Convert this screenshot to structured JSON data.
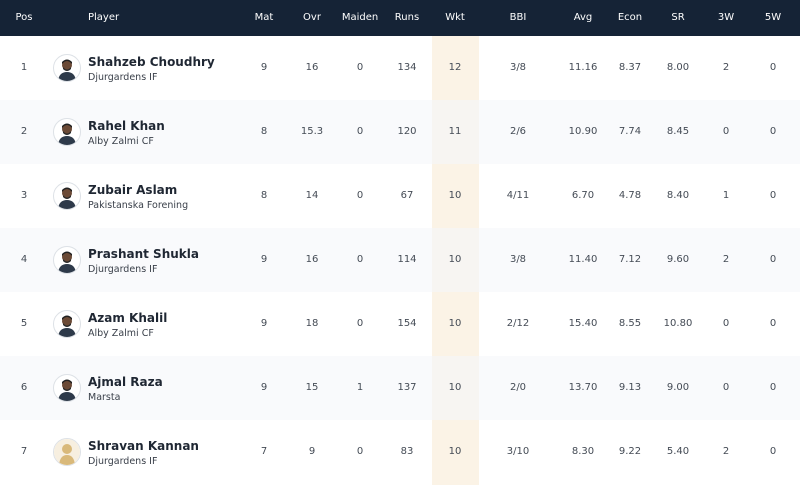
{
  "columns": {
    "pos": "Pos",
    "player": "Player",
    "mat": "Mat",
    "ovr": "Ovr",
    "maiden": "Maiden",
    "runs": "Runs",
    "wkt": "Wkt",
    "bbi": "BBI",
    "avg": "Avg",
    "econ": "Econ",
    "sr": "SR",
    "w3": "3W",
    "w5": "5W"
  },
  "highlight_color": "#fbf3e6",
  "header_color": "#152336",
  "rows": [
    {
      "pos": "1",
      "name": "Shahzeb Choudhry",
      "team": "Djurgardens IF",
      "mat": "9",
      "ovr": "16",
      "maiden": "0",
      "runs": "134",
      "wkt": "12",
      "bbi": "3/8",
      "avg": "11.16",
      "econ": "8.37",
      "sr": "8.00",
      "w3": "2",
      "w5": "0",
      "avatar": "player-photo"
    },
    {
      "pos": "2",
      "name": "Rahel Khan",
      "team": "Alby Zalmi CF",
      "mat": "8",
      "ovr": "15.3",
      "maiden": "0",
      "runs": "120",
      "wkt": "11",
      "bbi": "2/6",
      "avg": "10.90",
      "econ": "7.74",
      "sr": "8.45",
      "w3": "0",
      "w5": "0",
      "avatar": "player-photo"
    },
    {
      "pos": "3",
      "name": "Zubair Aslam",
      "team": "Pakistanska Forening",
      "mat": "8",
      "ovr": "14",
      "maiden": "0",
      "runs": "67",
      "wkt": "10",
      "bbi": "4/11",
      "avg": "6.70",
      "econ": "4.78",
      "sr": "8.40",
      "w3": "1",
      "w5": "0",
      "avatar": "player-photo"
    },
    {
      "pos": "4",
      "name": "Prashant Shukla",
      "team": "Djurgardens IF",
      "mat": "9",
      "ovr": "16",
      "maiden": "0",
      "runs": "114",
      "wkt": "10",
      "bbi": "3/8",
      "avg": "11.40",
      "econ": "7.12",
      "sr": "9.60",
      "w3": "2",
      "w5": "0",
      "avatar": "player-photo"
    },
    {
      "pos": "5",
      "name": "Azam Khalil",
      "team": "Alby Zalmi CF",
      "mat": "9",
      "ovr": "18",
      "maiden": "0",
      "runs": "154",
      "wkt": "10",
      "bbi": "2/12",
      "avg": "15.40",
      "econ": "8.55",
      "sr": "10.80",
      "w3": "0",
      "w5": "0",
      "avatar": "player-photo"
    },
    {
      "pos": "6",
      "name": "Ajmal Raza",
      "team": "Marsta",
      "mat": "9",
      "ovr": "15",
      "maiden": "1",
      "runs": "137",
      "wkt": "10",
      "bbi": "2/0",
      "avg": "13.70",
      "econ": "9.13",
      "sr": "9.00",
      "w3": "0",
      "w5": "0",
      "avatar": "player-photo"
    },
    {
      "pos": "7",
      "name": "Shravan Kannan",
      "team": "Djurgardens IF",
      "mat": "7",
      "ovr": "9",
      "maiden": "0",
      "runs": "83",
      "wkt": "10",
      "bbi": "3/10",
      "avg": "8.30",
      "econ": "9.22",
      "sr": "5.40",
      "w3": "2",
      "w5": "0",
      "avatar": "placeholder-silhouette"
    }
  ]
}
